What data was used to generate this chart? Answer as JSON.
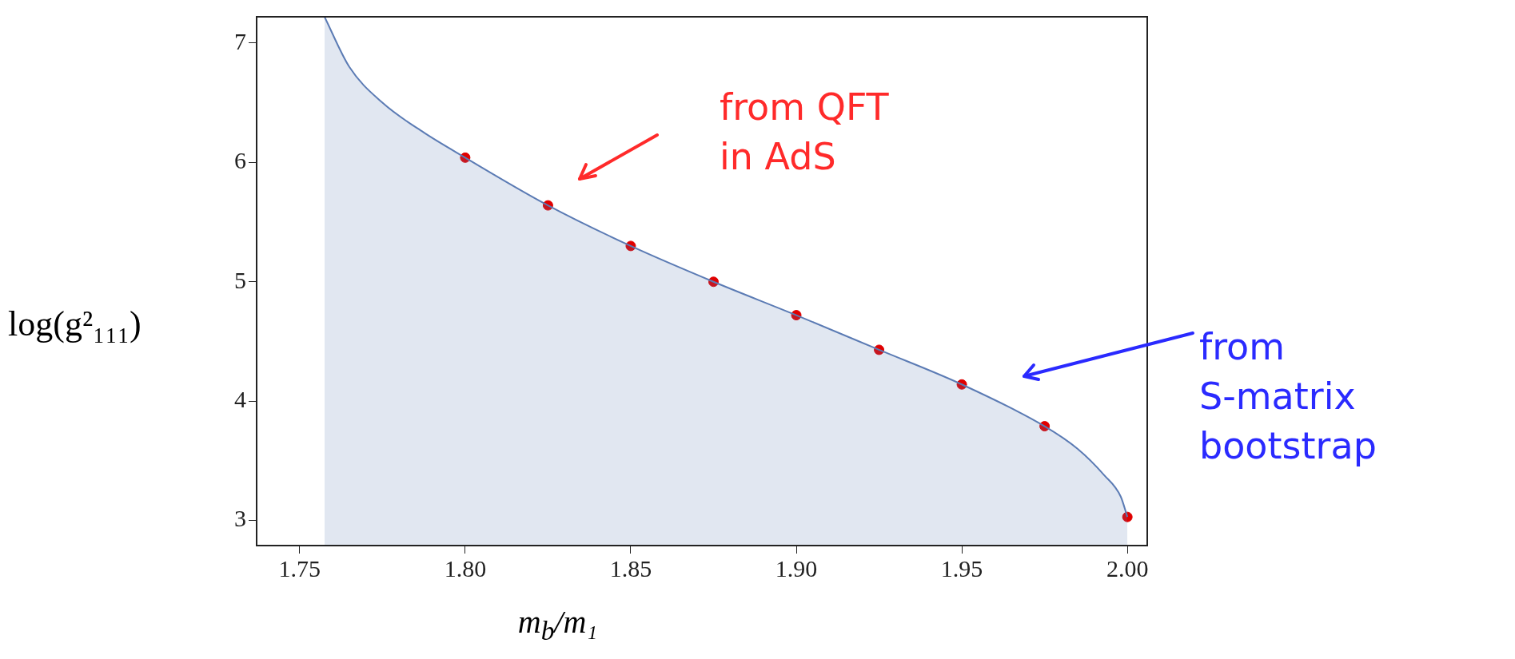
{
  "chart_data": {
    "type": "area",
    "xlabel": "m$_{b}$/m₁",
    "ylabel": "log(g²₁₁₁)",
    "xlim": [
      1.737,
      2.006
    ],
    "ylim": [
      2.79,
      7.22
    ],
    "xticks": [
      {
        "value": 1.75,
        "label": "1.75"
      },
      {
        "value": 1.8,
        "label": "1.80"
      },
      {
        "value": 1.85,
        "label": "1.85"
      },
      {
        "value": 1.9,
        "label": "1.90"
      },
      {
        "value": 1.95,
        "label": "1.95"
      },
      {
        "value": 2.0,
        "label": "2.00"
      }
    ],
    "yticks": [
      3,
      4,
      5,
      6,
      7
    ],
    "series": [
      {
        "color": "#5b7bb4",
        "x": [
          1.7575,
          1.765,
          1.775,
          1.7875,
          1.8,
          1.825,
          1.85,
          1.875,
          1.9,
          1.925,
          1.95,
          1.975,
          1.985,
          1.993,
          1.998,
          2.0
        ],
        "values": [
          7.22,
          6.8,
          6.5,
          6.25,
          6.04,
          5.64,
          5.3,
          5.0,
          4.72,
          4.43,
          4.14,
          3.79,
          3.6,
          3.38,
          3.2,
          3.03
        ]
      },
      {
        "type": "scatter",
        "color": "#e00000",
        "marker": "circle",
        "x": [
          1.8,
          1.825,
          1.85,
          1.875,
          1.9,
          1.925,
          1.95,
          1.975,
          2.0
        ],
        "values": [
          6.04,
          5.64,
          5.3,
          5.0,
          4.72,
          4.43,
          4.14,
          3.79,
          3.03
        ]
      }
    ],
    "annotations": [
      "from QFT in AdS",
      "from S-matrix bootstrap"
    ],
    "grid": false,
    "legend": false
  }
}
